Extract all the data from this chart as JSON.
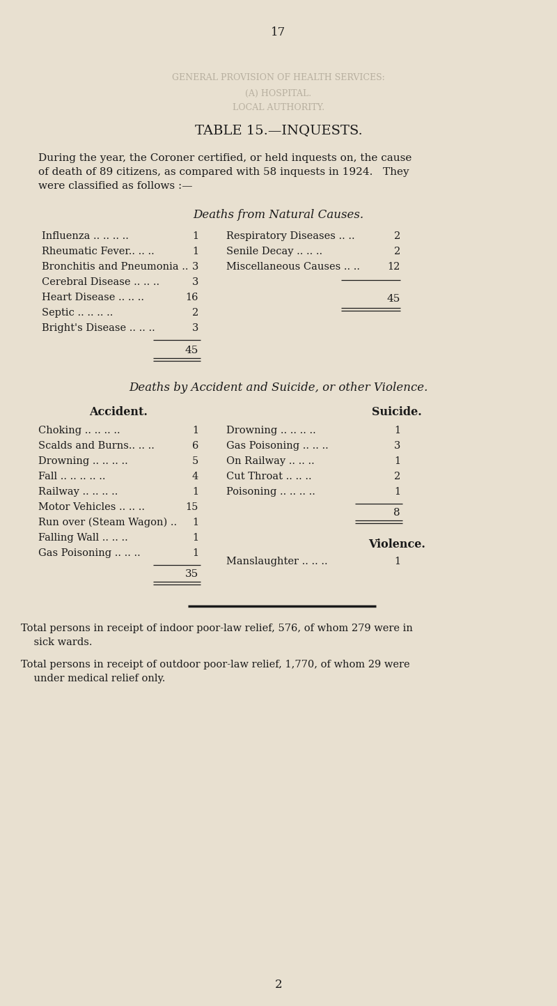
{
  "bg_color": "#e8e0d0",
  "text_color": "#1a1a1a",
  "page_number_top": "17",
  "page_number_bottom": "2",
  "watermark_top": "GENERAL PROVISION OF HEALTH SERVICES:",
  "watermark_mid1": "(A) HOSPITAL.",
  "watermark_mid2": "LOCAL AUTHORITY.",
  "title": "TABLE 15.—INQUESTS.",
  "intro_line1": "During the year, the Coroner certified, or held inquests on, the cause",
  "intro_line2": "of death of 89 citizens, as compared with 58 inquests in 1924.   They",
  "intro_line3": "were classified as follows :—",
  "section1_title": "Deaths from Natural Causes.",
  "natural_left": [
    [
      "Influenza .. .. .. ..",
      "1"
    ],
    [
      "Rheumatic Fever.. .. ..",
      "1"
    ],
    [
      "Bronchitis and Pneumonia ..",
      "3"
    ],
    [
      "Cerebral Disease .. .. ..",
      "3"
    ],
    [
      "Heart Disease .. .. ..",
      "16"
    ],
    [
      "Septic .. .. .. ..",
      "2"
    ],
    [
      "Bright's Disease .. .. ..",
      "3"
    ]
  ],
  "natural_right": [
    [
      "Respiratory Diseases .. ..",
      "2"
    ],
    [
      "Senile Decay .. .. ..",
      "2"
    ],
    [
      "Miscellaneous Causes .. ..",
      "12"
    ]
  ],
  "natural_total": "45",
  "section2_title": "Deaths by Accident and Suicide, or other Violence.",
  "accident_header": "Accident.",
  "accident_items": [
    [
      "Choking .. .. .. ..",
      "1"
    ],
    [
      "Scalds and Burns.. .. ..",
      "6"
    ],
    [
      "Drowning .. .. .. ..",
      "5"
    ],
    [
      "Fall .. .. .. .. ..",
      "4"
    ],
    [
      "Railway .. .. .. ..",
      "1"
    ],
    [
      "Motor Vehicles .. .. ..",
      "15"
    ],
    [
      "Run over (Steam Wagon) ..",
      "1"
    ],
    [
      "Falling Wall .. .. ..",
      "1"
    ],
    [
      "Gas Poisoning .. .. ..",
      "1"
    ]
  ],
  "accident_total": "35",
  "suicide_header": "Suicide.",
  "suicide_items": [
    [
      "Drowning .. .. .. ..",
      "1"
    ],
    [
      "Gas Poisoning .. .. ..",
      "3"
    ],
    [
      "On Railway .. .. ..",
      "1"
    ],
    [
      "Cut Throat .. .. ..",
      "2"
    ],
    [
      "Poisoning .. .. .. ..",
      "1"
    ]
  ],
  "suicide_total": "8",
  "violence_header": "Violence.",
  "violence_items": [
    [
      "Manslaughter .. .. ..",
      "1"
    ]
  ],
  "footer1_line1": "Total persons in receipt of indoor poor-law relief, 576, of whom 279 were in",
  "footer1_line2": "    sick wards.",
  "footer2_line1": "Total persons in receipt of outdoor poor-law relief, 1,770, of whom 29 were",
  "footer2_line2": "    under medical relief only."
}
